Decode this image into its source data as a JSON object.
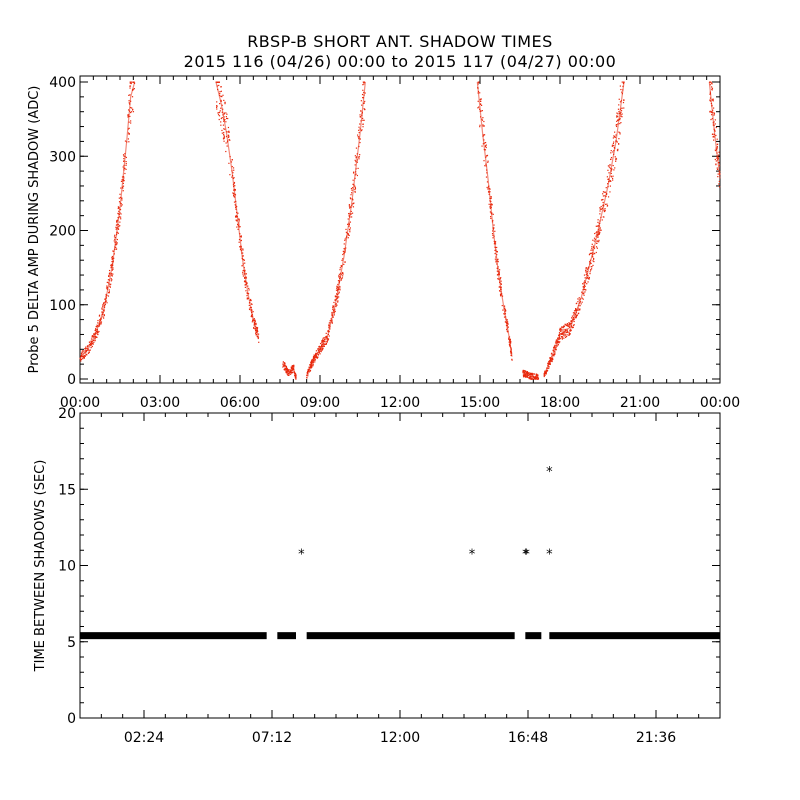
{
  "header": {
    "title": "RBSP-B SHORT ANT. SHADOW TIMES",
    "subtitle": "2015 116 (04/26) 00:00 to 2015 117 (04/27) 00:00"
  },
  "colors": {
    "top_series": "#e8280c",
    "bottom_series": "#000000",
    "axes": "#000000"
  },
  "chart_data": [
    {
      "type": "scatter",
      "title": "RBSP-B SHORT ANT. SHADOW TIMES",
      "xlabel": "",
      "ylabel": "Probe 5 DELTA AMP DURING SHADOW (ADC)",
      "xlim": [
        0,
        24
      ],
      "ylim": [
        0,
        400
      ],
      "x_unit": "hours since 2015-04-26 00:00",
      "x_ticks": [
        {
          "v": 0,
          "label": "00:00"
        },
        {
          "v": 3,
          "label": "03:00"
        },
        {
          "v": 6,
          "label": "06:00"
        },
        {
          "v": 9,
          "label": "09:00"
        },
        {
          "v": 12,
          "label": "12:00"
        },
        {
          "v": 15,
          "label": "15:00"
        },
        {
          "v": 18,
          "label": "18:00"
        },
        {
          "v": 21,
          "label": "21:00"
        },
        {
          "v": 24,
          "label": "00:00"
        }
      ],
      "y_ticks": [
        {
          "v": 0,
          "label": "0"
        },
        {
          "v": 100,
          "label": "100"
        },
        {
          "v": 200,
          "label": "200"
        },
        {
          "v": 300,
          "label": "300"
        },
        {
          "v": 400,
          "label": "400"
        }
      ],
      "series": [
        {
          "color": "#e8280c",
          "segments": [
            [
              [
                0.0,
                28
              ],
              [
                0.3,
                40
              ],
              [
                0.6,
                62
              ],
              [
                0.9,
                95
              ],
              [
                1.2,
                150
              ],
              [
                1.5,
                230
              ],
              [
                1.75,
                320
              ],
              [
                1.9,
                380
              ],
              [
                2.05,
                400
              ]
            ],
            [
              [
                5.1,
                400
              ],
              [
                5.3,
                370
              ],
              [
                5.5,
                330
              ],
              [
                5.7,
                280
              ],
              [
                5.9,
                220
              ],
              [
                6.1,
                160
              ],
              [
                6.3,
                115
              ],
              [
                6.5,
                80
              ],
              [
                6.7,
                55
              ]
            ],
            [
              [
                7.6,
                22
              ],
              [
                7.8,
                8
              ],
              [
                8.0,
                15
              ],
              [
                8.1,
                2
              ]
            ],
            [
              [
                8.5,
                5
              ],
              [
                8.7,
                22
              ],
              [
                9.0,
                40
              ],
              [
                9.3,
                60
              ],
              [
                9.6,
                105
              ],
              [
                9.9,
                165
              ],
              [
                10.2,
                240
              ],
              [
                10.5,
                330
              ],
              [
                10.7,
                400
              ]
            ],
            [
              [
                14.9,
                400
              ],
              [
                15.1,
                330
              ],
              [
                15.3,
                270
              ],
              [
                15.5,
                200
              ],
              [
                15.7,
                140
              ],
              [
                15.9,
                95
              ],
              [
                16.1,
                55
              ],
              [
                16.2,
                30
              ]
            ],
            [
              [
                16.6,
                8
              ],
              [
                16.9,
                4
              ],
              [
                17.2,
                2
              ]
            ],
            [
              [
                17.4,
                5
              ],
              [
                17.7,
                30
              ],
              [
                18.0,
                60
              ],
              [
                18.4,
                70
              ],
              [
                18.8,
                110
              ],
              [
                19.3,
                180
              ],
              [
                19.8,
                260
              ],
              [
                20.1,
                320
              ],
              [
                20.4,
                400
              ]
            ],
            [
              [
                23.6,
                400
              ],
              [
                23.8,
                330
              ],
              [
                24.0,
                270
              ]
            ]
          ]
        }
      ]
    },
    {
      "type": "scatter",
      "xlabel": "",
      "ylabel": "TIME BETWEEN SHADOWS (SEC)",
      "xlim": [
        0,
        24
      ],
      "ylim": [
        0,
        20
      ],
      "x_unit": "hours since 2015-04-26 00:00",
      "x_ticks": [
        {
          "v": 2.4,
          "label": "02:24"
        },
        {
          "v": 7.2,
          "label": "07:12"
        },
        {
          "v": 12.0,
          "label": "12:00"
        },
        {
          "v": 16.8,
          "label": "16:48"
        },
        {
          "v": 21.6,
          "label": "21:36"
        }
      ],
      "y_ticks": [
        {
          "v": 0,
          "label": "0"
        },
        {
          "v": 5,
          "label": "5"
        },
        {
          "v": 10,
          "label": "10"
        },
        {
          "v": 15,
          "label": "15"
        },
        {
          "v": 20,
          "label": "20"
        }
      ],
      "series": [
        {
          "color": "#000000",
          "baseline_value": 5.4,
          "baseline_ranges": [
            [
              0.0,
              7.0
            ],
            [
              7.4,
              8.1
            ],
            [
              8.5,
              16.3
            ],
            [
              16.7,
              17.3
            ],
            [
              17.6,
              24.0
            ]
          ],
          "outliers": [
            {
              "x": 8.3,
              "y": 10.8
            },
            {
              "x": 14.7,
              "y": 10.8
            },
            {
              "x": 16.7,
              "y": 10.8
            },
            {
              "x": 16.75,
              "y": 10.8
            },
            {
              "x": 17.6,
              "y": 10.8
            },
            {
              "x": 17.6,
              "y": 16.2
            }
          ]
        }
      ]
    }
  ]
}
